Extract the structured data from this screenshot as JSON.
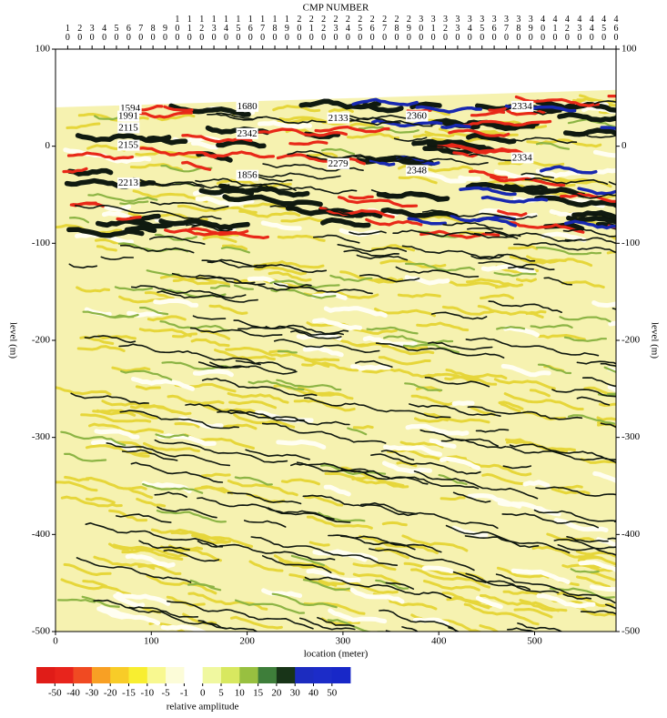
{
  "chart_data": {
    "type": "seismic",
    "title": "CMP NUMBER",
    "xlabel": "location (meter)",
    "ylabel": "level (m)",
    "xlim": [
      0,
      585
    ],
    "xticks": [
      0,
      100,
      200,
      300,
      400,
      500
    ],
    "ylim": [
      -500,
      100
    ],
    "yticks": [
      -500,
      -400,
      -300,
      -200,
      -100,
      0,
      100
    ],
    "cmp_lim": [
      0,
      460
    ],
    "cmp_ticks": [
      10,
      20,
      30,
      40,
      50,
      60,
      70,
      80,
      90,
      100,
      110,
      120,
      130,
      140,
      150,
      160,
      170,
      180,
      190,
      200,
      210,
      220,
      230,
      240,
      250,
      260,
      270,
      280,
      290,
      300,
      310,
      320,
      330,
      340,
      350,
      360,
      370,
      380,
      390,
      400,
      410,
      420,
      430,
      440,
      450,
      460
    ],
    "annotations": [
      {
        "text": "1594",
        "x": 78,
        "y": 39
      },
      {
        "text": "1991",
        "x": 76,
        "y": 31
      },
      {
        "text": "2115",
        "x": 76,
        "y": 19
      },
      {
        "text": "2155",
        "x": 76,
        "y": 1
      },
      {
        "text": "2213",
        "x": 76,
        "y": -38
      },
      {
        "text": "1680",
        "x": 200,
        "y": 41
      },
      {
        "text": "2342",
        "x": 200,
        "y": 13
      },
      {
        "text": "1856",
        "x": 200,
        "y": -30
      },
      {
        "text": "2133",
        "x": 295,
        "y": 29
      },
      {
        "text": "2279",
        "x": 295,
        "y": -18
      },
      {
        "text": "2360",
        "x": 377,
        "y": 31
      },
      {
        "text": "2348",
        "x": 377,
        "y": -25
      },
      {
        "text": "2334",
        "x": 487,
        "y": 41
      },
      {
        "text": "2334",
        "x": 487,
        "y": -12
      }
    ],
    "colorbar": {
      "label": "relative amplitude",
      "ticks": [
        -50,
        -40,
        -30,
        -20,
        -15,
        -10,
        -5,
        -1,
        0,
        5,
        10,
        15,
        20,
        30,
        40,
        50
      ],
      "colors": [
        "#e01c18",
        "#e8241c",
        "#f04a22",
        "#f8a024",
        "#f8cc28",
        "#f8ee30",
        "#f8f890",
        "#fcfcd8",
        "#ffffff",
        "#f0f8a0",
        "#d8e860",
        "#98c040",
        "#3e7e3a",
        "#183418",
        "#1c2cc0",
        "#1c2cc8",
        "#1828c8"
      ]
    }
  }
}
